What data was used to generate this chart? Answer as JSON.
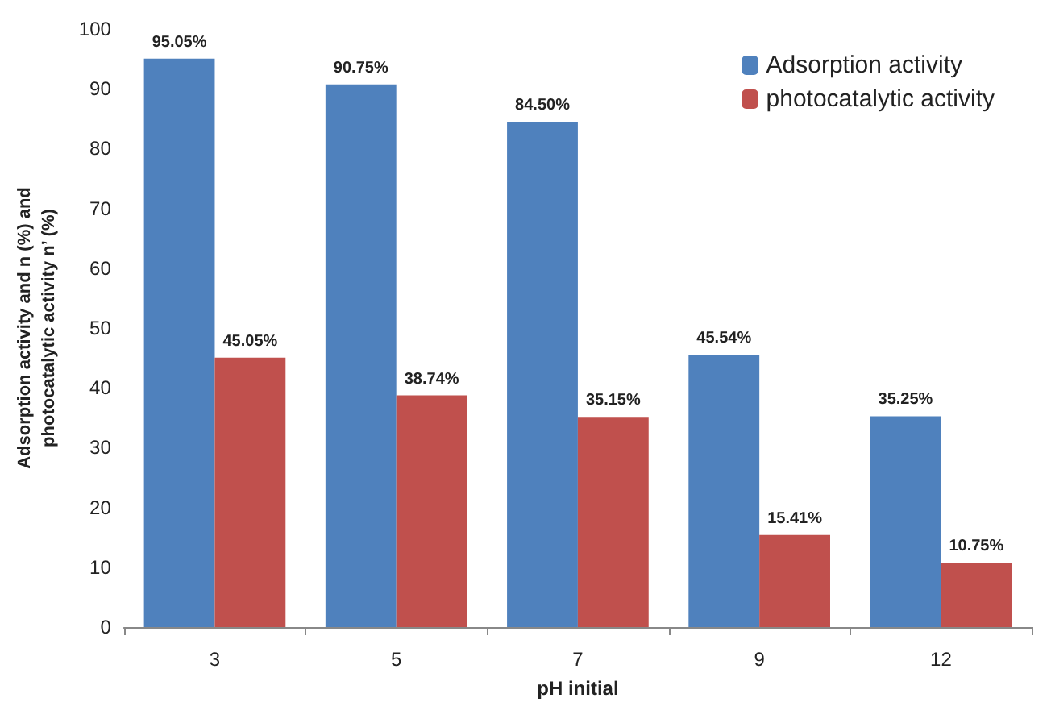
{
  "chart_data": {
    "type": "bar",
    "xlabel": "pH initial",
    "ylabel": "Adsorption activity and n (%) and\nphotocatalytic activity n’ (%)",
    "categories": [
      "3",
      "5",
      "7",
      "9",
      "12"
    ],
    "series": [
      {
        "name": "Adsorption activity",
        "color": "#4f81bd",
        "values": [
          95.05,
          90.75,
          84.5,
          45.54,
          35.25
        ],
        "value_labels": [
          "95.05%",
          "90.75%",
          "84.50%",
          "45.54%",
          "35.25%"
        ]
      },
      {
        "name": "photocatalytic activity",
        "color": "#c0504d",
        "values": [
          45.05,
          38.74,
          35.15,
          15.41,
          10.75
        ],
        "value_labels": [
          "45.05%",
          "38.74%",
          "35.15%",
          "15.41%",
          "10.75%"
        ]
      }
    ],
    "ylim": [
      0,
      100
    ],
    "yticks": [
      0,
      10,
      20,
      30,
      40,
      50,
      60,
      70,
      80,
      90,
      100
    ],
    "grid": false,
    "legend": "top right"
  }
}
